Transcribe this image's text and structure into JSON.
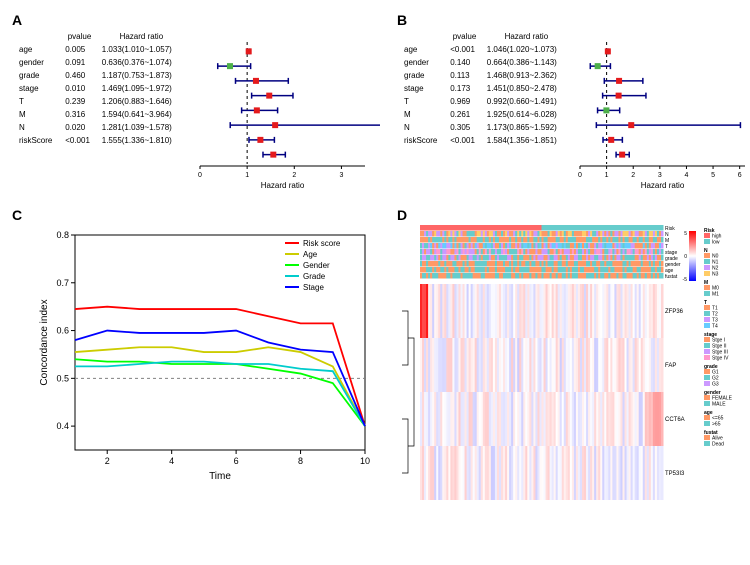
{
  "panel_A": {
    "label": "A",
    "headers": [
      "",
      "pvalue",
      "Hazard ratio"
    ],
    "rows": [
      {
        "name": "age",
        "pvalue": "0.005",
        "hr": "1.033(1.010~1.057)",
        "point": 1.033,
        "low": 1.01,
        "high": 1.057,
        "color": "#e41a1c"
      },
      {
        "name": "gender",
        "pvalue": "0.091",
        "hr": "0.636(0.376~1.074)",
        "point": 0.636,
        "low": 0.376,
        "high": 1.074,
        "color": "#4daf4a"
      },
      {
        "name": "grade",
        "pvalue": "0.460",
        "hr": "1.187(0.753~1.873)",
        "point": 1.187,
        "low": 0.753,
        "high": 1.873,
        "color": "#e41a1c"
      },
      {
        "name": "stage",
        "pvalue": "0.010",
        "hr": "1.469(1.095~1.972)",
        "point": 1.469,
        "low": 1.095,
        "high": 1.972,
        "color": "#e41a1c"
      },
      {
        "name": "T",
        "pvalue": "0.239",
        "hr": "1.206(0.883~1.646)",
        "point": 1.206,
        "low": 0.883,
        "high": 1.646,
        "color": "#e41a1c"
      },
      {
        "name": "M",
        "pvalue": "0.316",
        "hr": "1.594(0.641~3.964)",
        "point": 1.594,
        "low": 0.641,
        "high": 3.964,
        "color": "#e41a1c"
      },
      {
        "name": "N",
        "pvalue": "0.020",
        "hr": "1.281(1.039~1.578)",
        "point": 1.281,
        "low": 1.039,
        "high": 1.578,
        "color": "#e41a1c"
      },
      {
        "name": "riskScore",
        "pvalue": "<0.001",
        "hr": "1.555(1.336~1.810)",
        "point": 1.555,
        "low": 1.336,
        "high": 1.81,
        "color": "#e41a1c"
      }
    ],
    "xmin": 0,
    "xmax": 3.5,
    "xticks": [
      0,
      1,
      2,
      3
    ],
    "xlabel": "Hazard ratio"
  },
  "panel_B": {
    "label": "B",
    "headers": [
      "",
      "pvalue",
      "Hazard ratio"
    ],
    "rows": [
      {
        "name": "age",
        "pvalue": "<0.001",
        "hr": "1.046(1.020~1.073)",
        "point": 1.046,
        "low": 1.02,
        "high": 1.073,
        "color": "#e41a1c"
      },
      {
        "name": "gender",
        "pvalue": "0.140",
        "hr": "0.664(0.386~1.143)",
        "point": 0.664,
        "low": 0.386,
        "high": 1.143,
        "color": "#4daf4a"
      },
      {
        "name": "grade",
        "pvalue": "0.113",
        "hr": "1.468(0.913~2.362)",
        "point": 1.468,
        "low": 0.913,
        "high": 2.362,
        "color": "#e41a1c"
      },
      {
        "name": "stage",
        "pvalue": "0.173",
        "hr": "1.451(0.850~2.478)",
        "point": 1.451,
        "low": 0.85,
        "high": 2.478,
        "color": "#e41a1c"
      },
      {
        "name": "T",
        "pvalue": "0.969",
        "hr": "0.992(0.660~1.491)",
        "point": 0.992,
        "low": 0.66,
        "high": 1.491,
        "color": "#4daf4a"
      },
      {
        "name": "M",
        "pvalue": "0.261",
        "hr": "1.925(0.614~6.028)",
        "point": 1.925,
        "low": 0.614,
        "high": 6.028,
        "color": "#e41a1c"
      },
      {
        "name": "N",
        "pvalue": "0.305",
        "hr": "1.173(0.865~1.592)",
        "point": 1.173,
        "low": 0.865,
        "high": 1.592,
        "color": "#e41a1c"
      },
      {
        "name": "riskScore",
        "pvalue": "<0.001",
        "hr": "1.584(1.356~1.851)",
        "point": 1.584,
        "low": 1.356,
        "high": 1.851,
        "color": "#e41a1c"
      }
    ],
    "xmin": 0,
    "xmax": 6.2,
    "xticks": [
      0,
      1,
      2,
      3,
      4,
      5,
      6
    ],
    "xlabel": "Hazard ratio"
  },
  "panel_C": {
    "label": "C",
    "xlabel": "Time",
    "ylabel": "Concordance index",
    "xlim": [
      1,
      10
    ],
    "ylim": [
      0.35,
      0.8
    ],
    "yticks": [
      0.4,
      0.5,
      0.6,
      0.7,
      0.8
    ],
    "xticks": [
      2,
      4,
      6,
      8,
      10
    ],
    "grid_dash": "3,3",
    "grid_y": 0.5,
    "grid_color": "#808080",
    "legend": {
      "items": [
        "Risk score",
        "Age",
        "Gender",
        "Grade",
        "Stage"
      ],
      "colors": [
        "#ff0000",
        "#cccc00",
        "#00ff00",
        "#00cccc",
        "#0000ff"
      ]
    },
    "series": [
      {
        "name": "Risk score",
        "color": "#ff0000",
        "x": [
          1,
          2,
          3,
          4,
          5,
          6,
          7,
          8,
          9,
          10
        ],
        "y": [
          0.645,
          0.65,
          0.645,
          0.645,
          0.645,
          0.645,
          0.63,
          0.615,
          0.615,
          0.4
        ]
      },
      {
        "name": "Age",
        "color": "#cccc00",
        "x": [
          1,
          2,
          3,
          4,
          5,
          6,
          7,
          8,
          9,
          10
        ],
        "y": [
          0.555,
          0.56,
          0.565,
          0.565,
          0.555,
          0.555,
          0.565,
          0.555,
          0.525,
          0.4
        ]
      },
      {
        "name": "Gender",
        "color": "#00ff00",
        "x": [
          1,
          2,
          3,
          4,
          5,
          6,
          7,
          8,
          9,
          10
        ],
        "y": [
          0.54,
          0.535,
          0.535,
          0.53,
          0.53,
          0.53,
          0.52,
          0.51,
          0.49,
          0.4
        ]
      },
      {
        "name": "Grade",
        "color": "#00cccc",
        "x": [
          1,
          2,
          3,
          4,
          5,
          6,
          7,
          8,
          9,
          10
        ],
        "y": [
          0.525,
          0.525,
          0.53,
          0.535,
          0.535,
          0.53,
          0.53,
          0.52,
          0.515,
          0.4
        ]
      },
      {
        "name": "Stage",
        "color": "#0000ff",
        "x": [
          1,
          2,
          3,
          4,
          5,
          6,
          7,
          8,
          9,
          10
        ],
        "y": [
          0.58,
          0.6,
          0.595,
          0.595,
          0.595,
          0.6,
          0.575,
          0.56,
          0.555,
          0.4
        ]
      }
    ]
  },
  "panel_D": {
    "label": "D",
    "annotation_tracks": [
      "Risk",
      "N",
      "M",
      "T",
      "stage",
      "grade",
      "gender",
      "age",
      "fustat"
    ],
    "genes": [
      "ZFP36",
      "FAP",
      "CCT6A",
      "TP53I3"
    ],
    "heatmap_scale": {
      "min": -5,
      "max": 5,
      "low_color": "#0000ff",
      "mid_color": "#ffffff",
      "high_color": "#ff0000"
    },
    "n_samples": 120,
    "legends": [
      {
        "title": "Risk",
        "items": [
          {
            "label": "high",
            "color": "#ff6666"
          },
          {
            "label": "low",
            "color": "#66cccc"
          }
        ]
      },
      {
        "title": "N",
        "items": [
          {
            "label": "N0",
            "color": "#ff9966"
          },
          {
            "label": "N1",
            "color": "#66cccc"
          },
          {
            "label": "N2",
            "color": "#cc99ff"
          },
          {
            "label": "N3",
            "color": "#ffcc66"
          }
        ]
      },
      {
        "title": "M",
        "items": [
          {
            "label": "M0",
            "color": "#ff9966"
          },
          {
            "label": "M1",
            "color": "#66cccc"
          }
        ]
      },
      {
        "title": "T",
        "items": [
          {
            "label": "T1",
            "color": "#ff9966"
          },
          {
            "label": "T2",
            "color": "#66cccc"
          },
          {
            "label": "T3",
            "color": "#cc99ff"
          },
          {
            "label": "T4",
            "color": "#66ccff"
          }
        ]
      },
      {
        "title": "stage",
        "items": [
          {
            "label": "Stge I",
            "color": "#ff9966"
          },
          {
            "label": "Stge II",
            "color": "#66cccc"
          },
          {
            "label": "Stge III",
            "color": "#cc99ff"
          },
          {
            "label": "Stge IV",
            "color": "#ff99cc"
          }
        ]
      },
      {
        "title": "grade",
        "items": [
          {
            "label": "G1",
            "color": "#ff9966"
          },
          {
            "label": "G2",
            "color": "#66cccc"
          },
          {
            "label": "G3",
            "color": "#cc99ff"
          }
        ]
      },
      {
        "title": "gender",
        "items": [
          {
            "label": "FEMALE",
            "color": "#ff9966"
          },
          {
            "label": "MALE",
            "color": "#66cccc"
          }
        ]
      },
      {
        "title": "age",
        "items": [
          {
            "label": "<=65",
            "color": "#ff9966"
          },
          {
            "label": ">65",
            "color": "#66cccc"
          }
        ]
      },
      {
        "title": "fustat",
        "items": [
          {
            "label": "Alive",
            "color": "#ff9966"
          },
          {
            "label": "Dead",
            "color": "#66cccc"
          }
        ]
      }
    ]
  }
}
